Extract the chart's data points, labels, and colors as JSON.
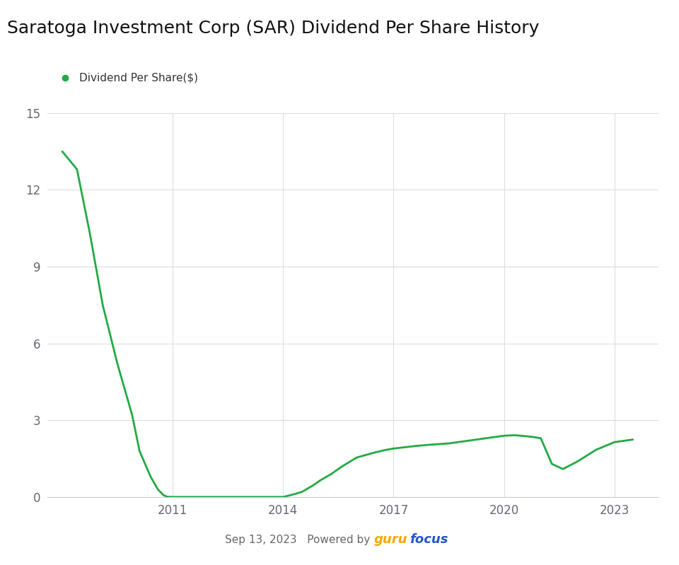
{
  "title": "Saratoga Investment Corp (SAR) Dividend Per Share History",
  "legend_label": "Dividend Per Share($)",
  "line_color": "#22aa44",
  "background_color": "#ffffff",
  "plot_bg_color": "#ffffff",
  "grid_color": "#dddddd",
  "title_fontsize": 18,
  "tick_fontsize": 12,
  "ylim": [
    0,
    15
  ],
  "yticks": [
    0,
    3,
    6,
    9,
    12,
    15
  ],
  "xlim": [
    2007.6,
    2024.2
  ],
  "x_data": [
    2008.0,
    2008.4,
    2008.75,
    2009.1,
    2009.5,
    2009.9,
    2010.1,
    2010.4,
    2010.6,
    2010.75,
    2010.85,
    2010.95,
    2011.0,
    2011.5,
    2012.0,
    2012.5,
    2013.0,
    2013.5,
    2013.9,
    2014.0,
    2014.2,
    2014.5,
    2014.8,
    2015.0,
    2015.3,
    2015.6,
    2016.0,
    2016.5,
    2016.8,
    2017.0,
    2017.3,
    2017.6,
    2018.0,
    2018.5,
    2019.0,
    2019.5,
    2020.0,
    2020.3,
    2020.6,
    2020.8,
    2021.0,
    2021.3,
    2021.6,
    2022.0,
    2022.5,
    2023.0,
    2023.5
  ],
  "y_data": [
    13.5,
    12.8,
    10.3,
    7.5,
    5.2,
    3.2,
    1.8,
    0.8,
    0.3,
    0.08,
    0.02,
    0.01,
    0.01,
    0.01,
    0.01,
    0.01,
    0.01,
    0.01,
    0.01,
    0.01,
    0.08,
    0.2,
    0.45,
    0.65,
    0.9,
    1.2,
    1.55,
    1.75,
    1.85,
    1.9,
    1.95,
    2.0,
    2.05,
    2.1,
    2.2,
    2.3,
    2.4,
    2.42,
    2.38,
    2.35,
    2.3,
    1.3,
    1.1,
    1.4,
    1.85,
    2.15,
    2.25
  ],
  "xtick_positions": [
    2011,
    2014,
    2017,
    2020,
    2023
  ],
  "xtick_labels": [
    "2011",
    "2014",
    "2017",
    "2020",
    "2023"
  ],
  "date_text": "Sep 13, 2023",
  "powered_by_text": "Powered by ",
  "guru_text": "guru",
  "focus_text": "focus",
  "guru_color": "#f5a800",
  "focus_color": "#2255cc",
  "date_color": "#666666",
  "powered_color": "#666666"
}
